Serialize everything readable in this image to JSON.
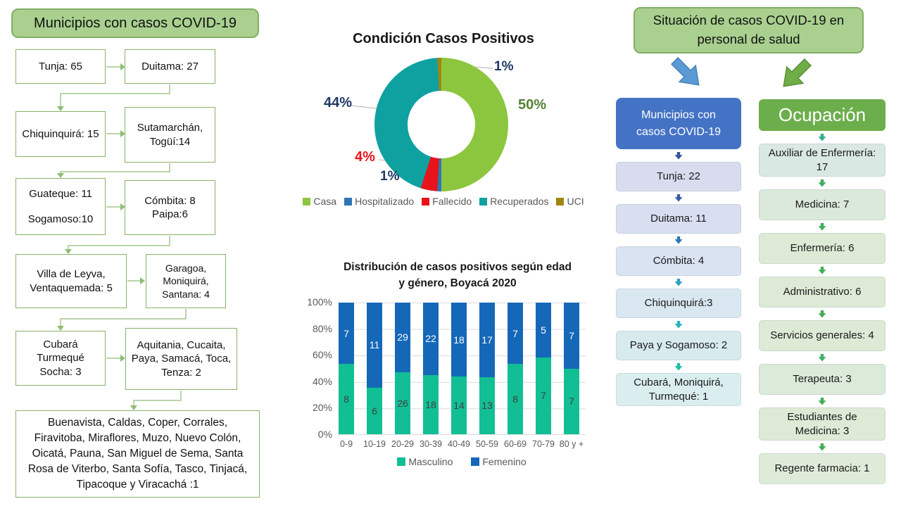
{
  "flow_left": {
    "title": "Municipios con casos COVID-19",
    "boxes": [
      "Tunja: 65",
      "Duitama: 27",
      "Chiquinquirá: 15",
      "Sutamarchán, Togüí:14",
      "Guateque: 11\nSogamoso:10",
      "Cómbita: 8\nPaipa:6",
      "Villa de Leyva, Ventaquemada: 5",
      "Garagoa, Moniquirá, Santana: 4",
      "Cubará\nTurmequé\nSocha: 3",
      "Aquitania, Cucaita, Paya, Samacá, Toca, Tenza: 2",
      "Buenavista, Caldas, Coper, Corrales, Firavitoba, Miraflores, Muzo, Nuevo Colón, Oicatá, Pauna, San Miguel de Sema, Santa Rosa de Viterbo, Santa Sofía, Tasco, Tinjacá, Tipacoque y Viracachá :1"
    ]
  },
  "chart_data": [
    {
      "type": "pie",
      "subtype": "donut",
      "title": "Condición Casos Positivos",
      "start_angle_deg": 0,
      "clockwise": true,
      "legend_position": "bottom",
      "segments": [
        {
          "label": "Casa",
          "value": 50,
          "color": "#8CC63F",
          "callout": "50%",
          "callout_color": "#548235"
        },
        {
          "label": "Hospitalizado",
          "value": 1,
          "color": "#2E75B6",
          "callout": "1%",
          "callout_color": "#1F3864"
        },
        {
          "label": "Fallecido",
          "value": 4,
          "color": "#E8131B",
          "callout": "4%",
          "callout_color": "#E8131B"
        },
        {
          "label": "Recuperados",
          "value": 44,
          "color": "#0FA0A0",
          "callout": "44%",
          "callout_color": "#1F3864"
        },
        {
          "label": "UCI",
          "value": 1,
          "color": "#A08510",
          "callout": "1%",
          "callout_color": "#1F3864"
        }
      ]
    },
    {
      "type": "bar",
      "subtype": "stacked-100",
      "title": "Distribución de casos positivos según edad\ny género, Boyacá 2020",
      "categories": [
        "0-9",
        "10-19",
        "20-29",
        "30-39",
        "40-49",
        "50-59",
        "60-69",
        "70-79",
        "80 y +"
      ],
      "series": [
        {
          "name": "Masculino",
          "color": "#12BE94",
          "label_color": "#404040",
          "values": [
            8,
            6,
            26,
            18,
            14,
            13,
            8,
            7,
            7
          ]
        },
        {
          "name": "Femenino",
          "color": "#1567B8",
          "label_color": "#ffffff",
          "values": [
            7,
            11,
            29,
            22,
            18,
            17,
            7,
            5,
            7
          ]
        }
      ],
      "yticks": [
        "100%",
        "80%",
        "60%",
        "40%",
        "20%",
        "0%"
      ],
      "ylim": [
        0,
        100
      ],
      "grid": true,
      "legend_position": "bottom"
    }
  ],
  "right_section": {
    "header": "Situación de casos COVID-19 en personal de salud",
    "arrow_blue": "#5B9BD5",
    "arrow_green": "#70AD47",
    "municipios": {
      "title": "Municipios con casos COVID-19",
      "title_bg": "#4472C4",
      "arrow_colors": [
        "#39549E",
        "#3A5CA8",
        "#2F74B5",
        "#2DA0C8",
        "#28B3BE",
        "#23BCA4"
      ],
      "items": [
        {
          "label": "Tunja: 22",
          "bg": "#D9DCEE"
        },
        {
          "label": "Duitama: 11",
          "bg": "#D9DFF0"
        },
        {
          "label": "Cómbita: 4",
          "bg": "#DAE3F1"
        },
        {
          "label": "Chiquinquirá:3",
          "bg": "#D8E7F0"
        },
        {
          "label": "Paya y Sogamoso: 2",
          "bg": "#D7EBEF"
        },
        {
          "label": "Cubará, Moniquirá, Turmequé: 1",
          "bg": "#DAEEEF"
        }
      ]
    },
    "ocupacion": {
      "title": "Ocupación",
      "title_bg": "#6CAE4B",
      "arrow_colors": [
        "#36AE8C",
        "#3FAC62",
        "#44AD55",
        "#44AD55",
        "#44AD55",
        "#3FAE6E",
        "#44AD55",
        "#44AD55"
      ],
      "items": [
        {
          "label": "Auxiliar de Enfermería: 17",
          "bg": "#D9E8E2"
        },
        {
          "label": "Medicina: 7",
          "bg": "#DBE9DA"
        },
        {
          "label": "Enfermería: 6",
          "bg": "#DCEAD6"
        },
        {
          "label": "Administrativo:  6",
          "bg": "#DCEAD6"
        },
        {
          "label": "Servicios generales: 4",
          "bg": "#DCEAD6"
        },
        {
          "label": "Terapeuta: 3",
          "bg": "#DBEAD9"
        },
        {
          "label": "Estudiantes de Medicina: 3",
          "bg": "#DCEAD6"
        },
        {
          "label": "Regente farmacia: 1",
          "bg": "#DDEBD8"
        }
      ]
    }
  }
}
